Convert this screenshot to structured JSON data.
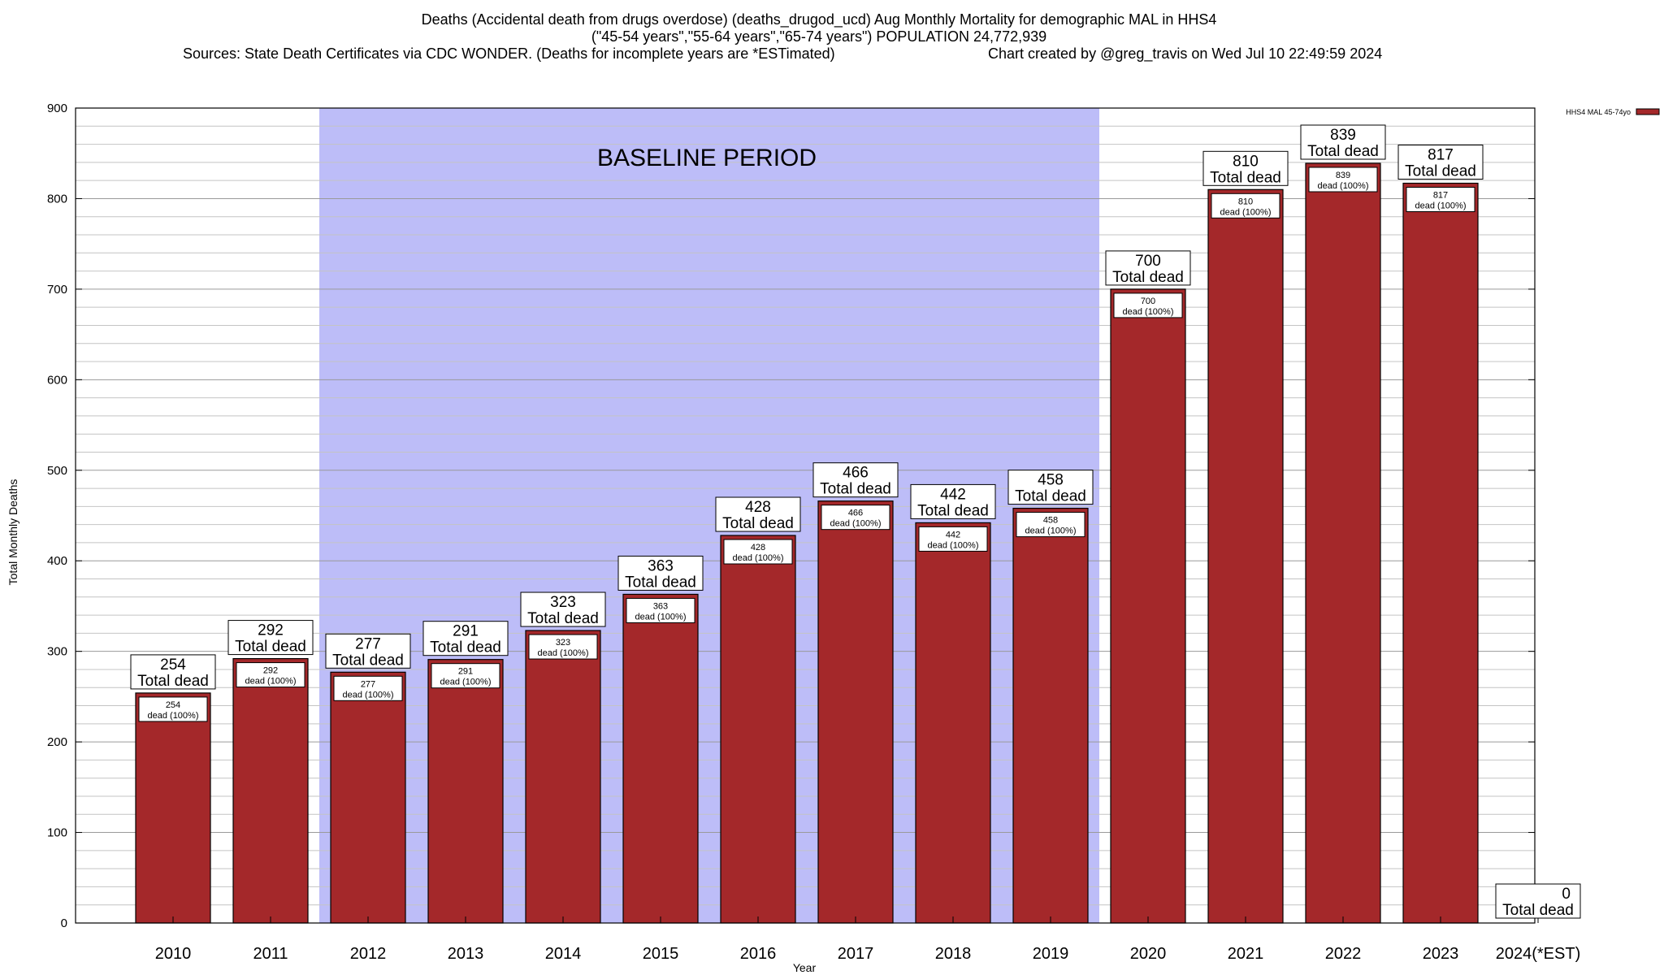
{
  "chart_data": {
    "type": "bar",
    "title_line1": "Deaths (Accidental death from drugs overdose) (deaths_drugod_ucd) Aug Monthly Mortality for demographic MAL in HHS4",
    "title_line2": "(\"45-54 years\",\"55-64 years\",\"65-74 years\") POPULATION 24,772,939",
    "sources": "Sources: State Death Certificates via CDC WONDER. (Deaths for incomplete years are *ESTimated)",
    "credit": "Chart created by @greg_travis on Wed Jul 10 22:49:59 2024",
    "xlabel": "Year",
    "ylabel": "Total Monthly Deaths",
    "ylim": [
      0,
      900
    ],
    "y_major_ticks": [
      0,
      100,
      200,
      300,
      400,
      500,
      600,
      700,
      800,
      900
    ],
    "y_minor_step": 20,
    "categories": [
      "2010",
      "2011",
      "2012",
      "2013",
      "2014",
      "2015",
      "2016",
      "2017",
      "2018",
      "2019",
      "2020",
      "2021",
      "2022",
      "2023",
      "2024(*EST)"
    ],
    "series": [
      {
        "name": "HHS4 MAL 45-74yo",
        "color": "#a4282a",
        "values": [
          254,
          292,
          277,
          291,
          323,
          363,
          428,
          466,
          442,
          458,
          700,
          810,
          839,
          817,
          0
        ]
      }
    ],
    "top_label_suffix": "Total dead",
    "inner_label_suffix": "dead (100%)",
    "baseline": {
      "label": "BASELINE PERIOD",
      "start": "2012",
      "end": "2019",
      "color": "#bdbdf8"
    },
    "legend": "HHS4 MAL 45-74yo",
    "legend_position": "top-right",
    "grid": true
  }
}
